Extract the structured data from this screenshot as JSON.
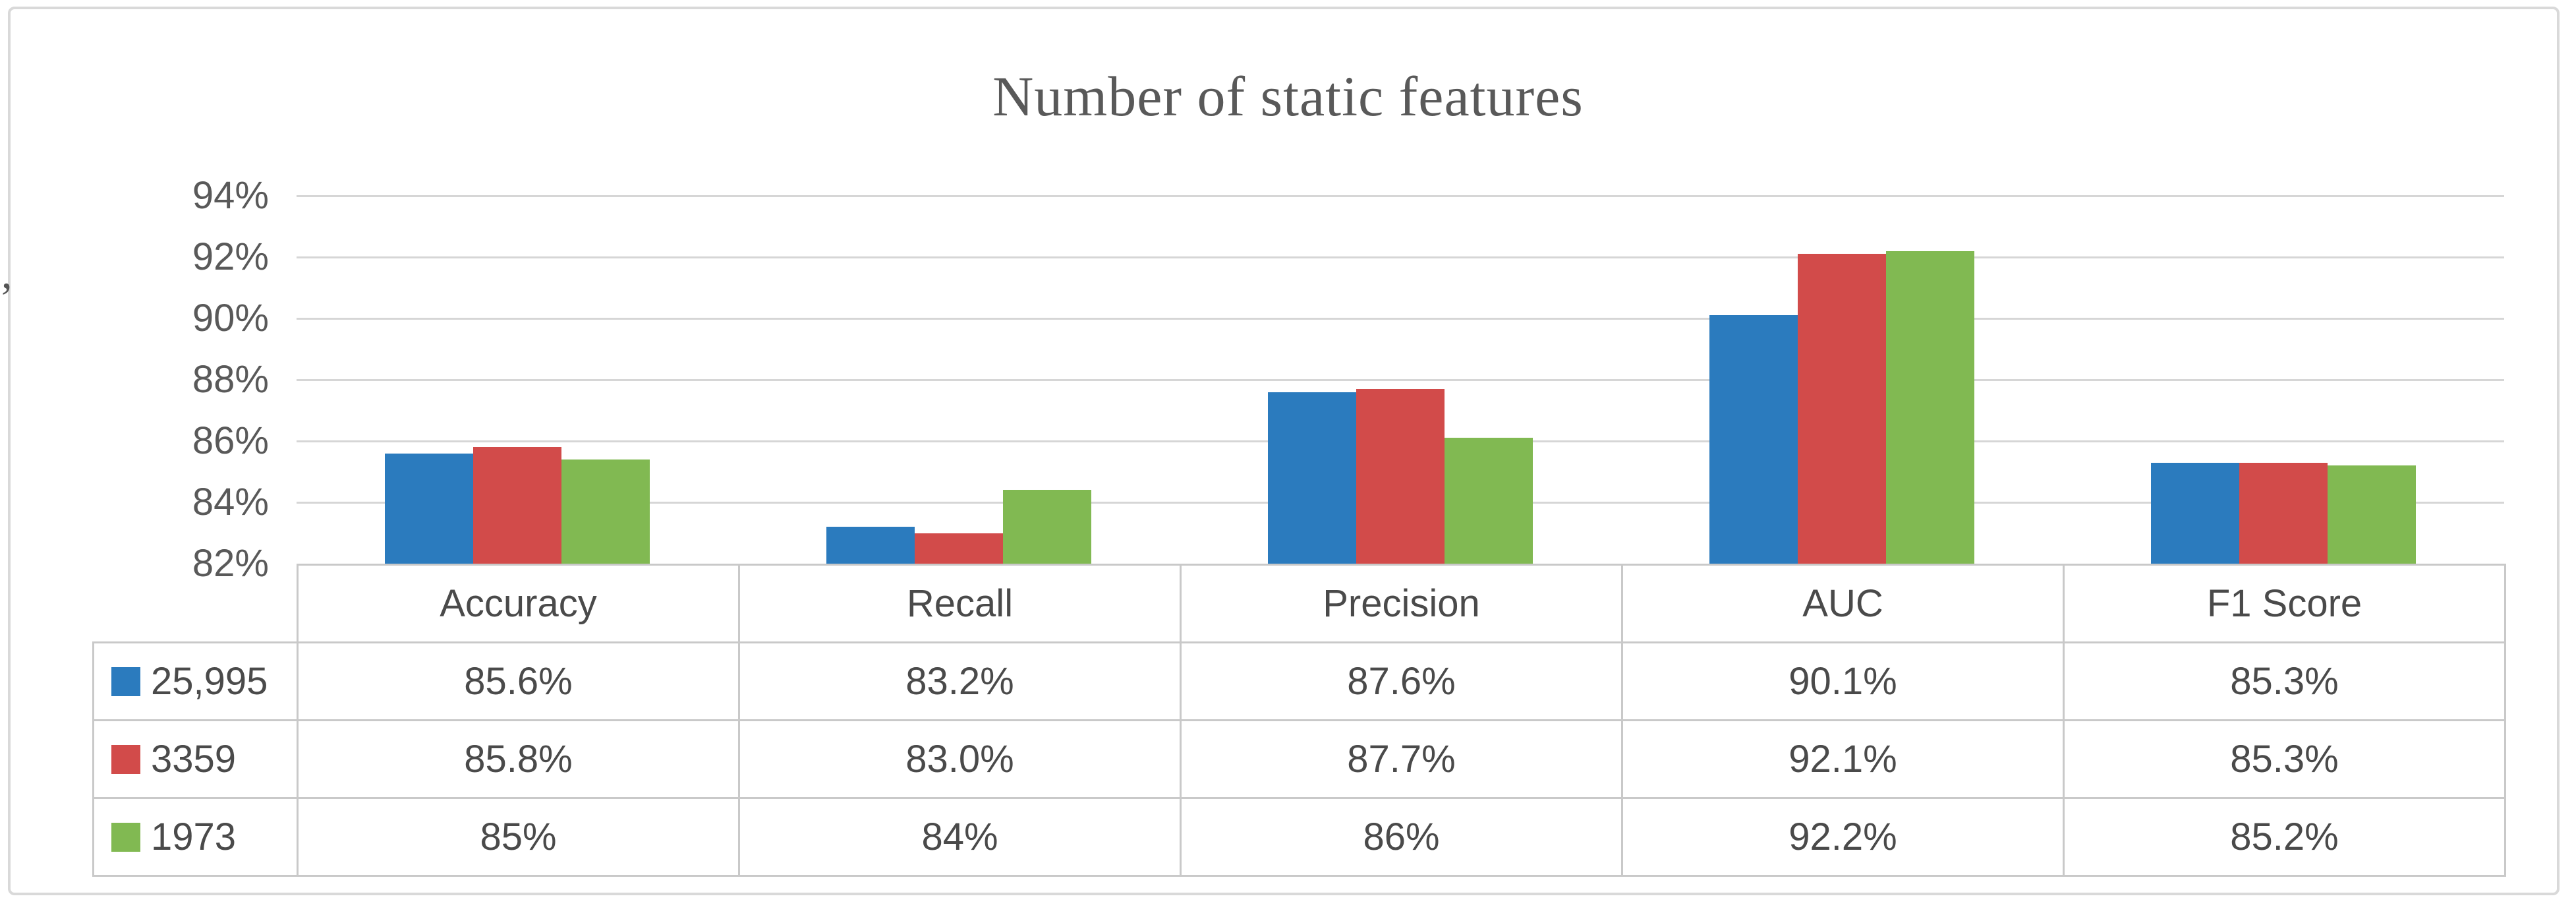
{
  "chart_data": {
    "type": "bar",
    "title": "Number of static features",
    "categories": [
      "Accuracy",
      "Recall",
      "Precision",
      "AUC",
      "F1 Score"
    ],
    "series": [
      {
        "name": "25,995",
        "color": "#2B7BBE",
        "plotted_values": [
          85.6,
          83.2,
          87.6,
          90.1,
          85.3
        ],
        "table_values": [
          "85.6%",
          "83.2%",
          "87.6%",
          "90.1%",
          "85.3%"
        ]
      },
      {
        "name": "3359",
        "color": "#D24B4A",
        "plotted_values": [
          85.8,
          83.0,
          87.7,
          92.1,
          85.3
        ],
        "table_values": [
          "85.8%",
          "83.0%",
          "87.7%",
          "92.1%",
          "85.3%"
        ]
      },
      {
        "name": "1973",
        "color": "#81B952",
        "plotted_values": [
          85.4,
          84.4,
          86.1,
          92.2,
          85.2
        ],
        "table_values": [
          "85%",
          "84%",
          "86%",
          "92.2%",
          "85.2%"
        ]
      }
    ],
    "y_axis": {
      "min": 82,
      "max": 94,
      "step": 2,
      "tick_labels": [
        "94%",
        "92%",
        "90%",
        "88%",
        "86%",
        "84%",
        "82%"
      ]
    },
    "grid": true,
    "legend_position": "left column of attached data table"
  },
  "page": {
    "stray_character": ","
  },
  "styles": {
    "title_color": "#595959",
    "axis_text_color": "#595959",
    "table_text_color": "#4A4A4A",
    "gridline_color": "#D6D6D6",
    "table_border_color": "#C9C9C9",
    "frame_border_color": "#D9D9D9",
    "background": "#FFFFFF"
  }
}
